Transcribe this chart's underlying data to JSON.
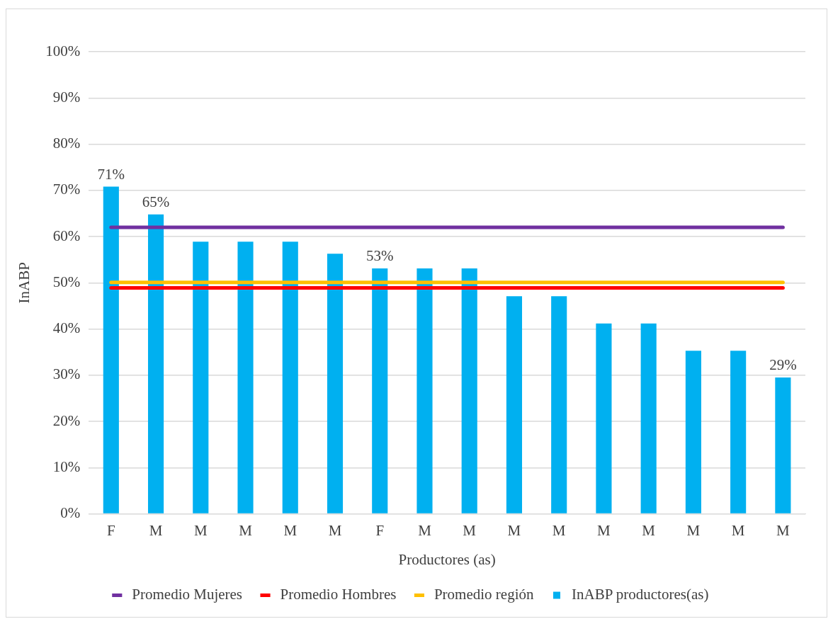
{
  "chart_data": {
    "type": "bar",
    "xlabel": "Productores (as)",
    "ylabel": "InABP",
    "categories": [
      "F",
      "M",
      "M",
      "M",
      "M",
      "M",
      "F",
      "M",
      "M",
      "M",
      "M",
      "M",
      "M",
      "M",
      "M",
      "M"
    ],
    "series": [
      {
        "name": "InABP productores(as)",
        "color": "#00b0f0",
        "values": [
          70.8,
          64.8,
          58.9,
          58.9,
          58.9,
          56.3,
          53.1,
          53.1,
          53.1,
          47.1,
          47.1,
          41.2,
          41.2,
          35.3,
          35.3,
          29.5
        ],
        "value_labels": [
          "71%",
          "65%",
          null,
          null,
          null,
          null,
          "53%",
          null,
          null,
          null,
          null,
          null,
          null,
          null,
          null,
          "29%"
        ]
      },
      {
        "name": "Promedio Mujeres",
        "type": "line",
        "color": "#7030a0",
        "values": [
          62.0,
          62.0,
          62.0,
          62.0,
          62.0,
          62.0,
          62.0,
          62.0,
          62.0,
          62.0,
          62.0,
          62.0,
          62.0,
          62.0,
          62.0,
          62.0
        ]
      },
      {
        "name": "Promedio Hombres",
        "type": "line",
        "color": "#ff0000",
        "values": [
          48.9,
          48.9,
          48.9,
          48.9,
          48.9,
          48.9,
          48.9,
          48.9,
          48.9,
          48.9,
          48.9,
          48.9,
          48.9,
          48.9,
          48.9,
          48.9
        ]
      },
      {
        "name": "Promedio región",
        "type": "line",
        "color": "#ffc000",
        "values": [
          50.1,
          50.1,
          50.1,
          50.1,
          50.1,
          50.1,
          50.1,
          50.1,
          50.1,
          50.1,
          50.1,
          50.1,
          50.1,
          50.1,
          50.1,
          50.1
        ]
      }
    ],
    "ylim": [
      0,
      100
    ],
    "yticks": [
      {
        "value": 0,
        "label": "0%"
      },
      {
        "value": 10,
        "label": "10%"
      },
      {
        "value": 20,
        "label": "20%"
      },
      {
        "value": 30,
        "label": "30%"
      },
      {
        "value": 40,
        "label": "40%"
      },
      {
        "value": 50,
        "label": "50%"
      },
      {
        "value": 60,
        "label": "60%"
      },
      {
        "value": 70,
        "label": "70%"
      },
      {
        "value": 80,
        "label": "80%"
      },
      {
        "value": 90,
        "label": "90%"
      },
      {
        "value": 100,
        "label": "100%"
      }
    ],
    "grid": "y",
    "legend": "bottom",
    "marker": "none"
  }
}
